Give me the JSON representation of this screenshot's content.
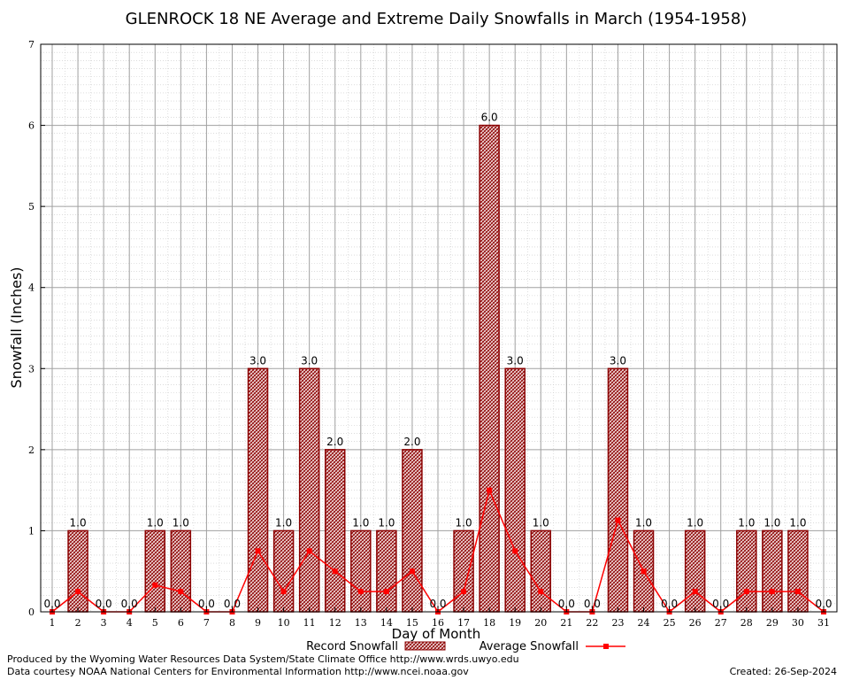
{
  "chart_data": {
    "type": "bar",
    "title": "GLENROCK 18 NE Average and Extreme Daily Snowfalls in March (1954-1958)",
    "xlabel": "Day of Month",
    "ylabel": "Snowfall (Inches)",
    "ylim": [
      0,
      7
    ],
    "yticks": [
      "0",
      "1",
      "2",
      "3",
      "4",
      "5",
      "6",
      "7"
    ],
    "categories": [
      "1",
      "2",
      "3",
      "4",
      "5",
      "6",
      "7",
      "8",
      "9",
      "10",
      "11",
      "12",
      "13",
      "14",
      "15",
      "16",
      "17",
      "18",
      "19",
      "20",
      "21",
      "22",
      "23",
      "24",
      "25",
      "26",
      "27",
      "28",
      "29",
      "30",
      "31"
    ],
    "series": [
      {
        "name": "Record Snowfall",
        "type": "bar",
        "values": [
          0.0,
          1.0,
          0.0,
          0.0,
          1.0,
          1.0,
          0.0,
          0.0,
          3.0,
          1.0,
          3.0,
          2.0,
          1.0,
          1.0,
          2.0,
          0.0,
          1.0,
          6.0,
          3.0,
          1.0,
          0.0,
          0.0,
          3.0,
          1.0,
          0.0,
          1.0,
          0.0,
          1.0,
          1.0,
          1.0,
          0.0
        ],
        "labels": [
          "0.0",
          "1.0",
          "0.0",
          "0.0",
          "1.0",
          "1.0",
          "0.0",
          "0.0",
          "3.0",
          "1.0",
          "3.0",
          "2.0",
          "1.0",
          "1.0",
          "2.0",
          "0.0",
          "1.0",
          "6.0",
          "3.0",
          "1.0",
          "0.0",
          "0.0",
          "3.0",
          "1.0",
          "0.0",
          "1.0",
          "0.0",
          "1.0",
          "1.0",
          "1.0",
          "0.0"
        ],
        "color": "#8b0000"
      },
      {
        "name": "Average Snowfall",
        "type": "line",
        "values": [
          0.0,
          0.25,
          0.0,
          0.0,
          0.33,
          0.25,
          0.0,
          0.0,
          0.75,
          0.25,
          0.75,
          0.5,
          0.25,
          0.25,
          0.5,
          0.0,
          0.25,
          1.5,
          0.75,
          0.25,
          0.0,
          0.0,
          1.13,
          0.5,
          0.0,
          0.25,
          0.0,
          0.25,
          0.25,
          0.25,
          0.0
        ],
        "color": "#ff0000"
      }
    ],
    "grid": true,
    "legend": "bottom"
  },
  "footer": {
    "line1": "Produced by the Wyoming Water Resources Data System/State Climate Office http://www.wrds.uwyo.edu",
    "line2": "Data courtesy NOAA National Centers for Environmental Information http://www.ncei.noaa.gov",
    "created": "Created:  26-Sep-2024"
  }
}
